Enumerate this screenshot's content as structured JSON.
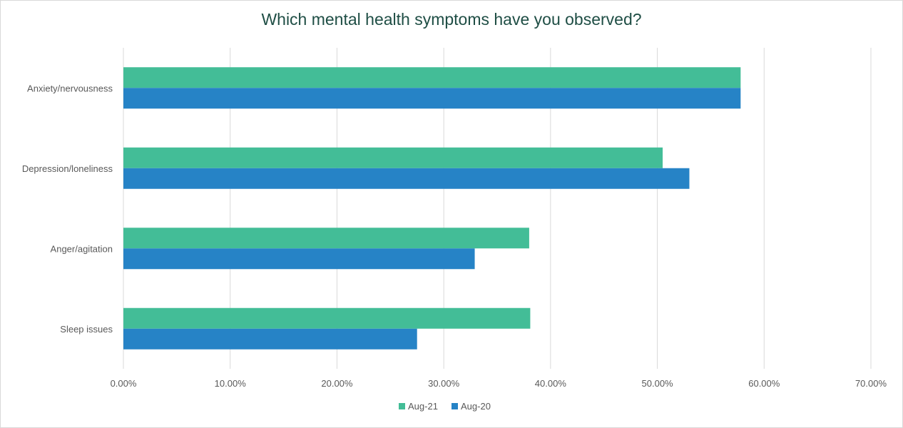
{
  "chart_data": {
    "type": "bar",
    "orientation": "horizontal",
    "title": "Which mental health symptoms have you observed?",
    "categories": [
      "Anxiety/nervousness",
      "Depression/loneliness",
      "Anger/agitation",
      "Sleep issues"
    ],
    "series": [
      {
        "name": "Aug-21",
        "color": "#43bd97",
        "values": [
          57.8,
          50.5,
          38.0,
          38.1
        ]
      },
      {
        "name": "Aug-20",
        "color": "#2683c6",
        "values": [
          57.8,
          53.0,
          32.9,
          27.5
        ]
      }
    ],
    "xlim": [
      0,
      70
    ],
    "xticks": [
      "0.00%",
      "10.00%",
      "20.00%",
      "30.00%",
      "40.00%",
      "50.00%",
      "60.00%",
      "70.00%"
    ],
    "grid": "vertical",
    "legend": "bottom"
  }
}
